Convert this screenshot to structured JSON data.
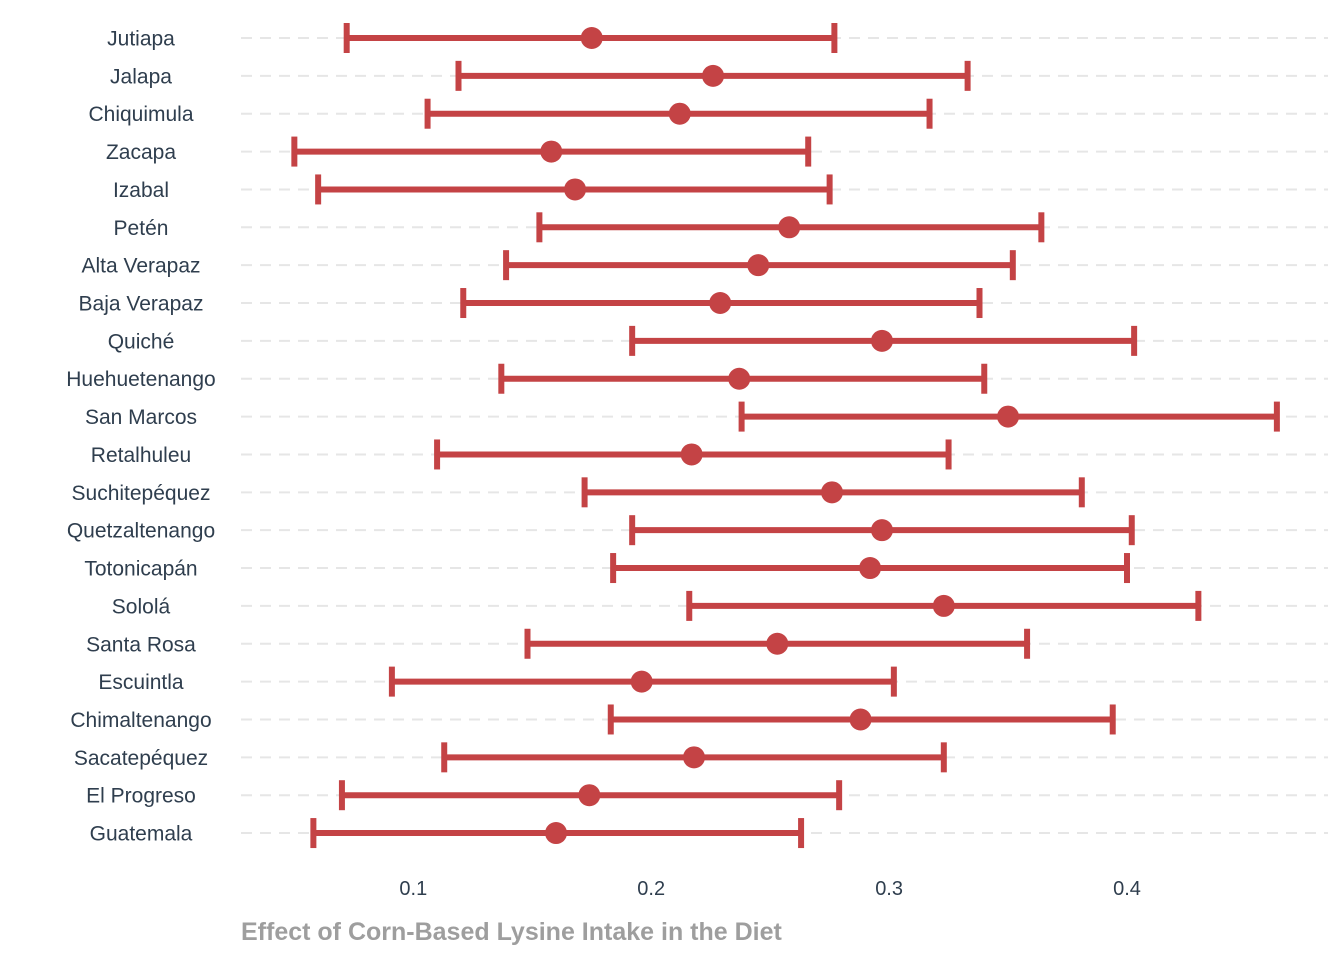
{
  "chart_data": {
    "type": "scatter",
    "subtype": "dot-with-error-bars",
    "xlabel": "Effect of Corn-Based Lysine Intake in the Diet",
    "ylabel": "",
    "xlim": [
      0.03,
      0.47
    ],
    "x_ticks": [
      0.1,
      0.2,
      0.3,
      0.4
    ],
    "x_tick_labels": [
      "0.1",
      "0.2",
      "0.3",
      "0.4"
    ],
    "grid": "horizontal dashed",
    "legend": "none",
    "colors": {
      "point": "#c44345",
      "bar": "#c44345",
      "grid": "#e6e6e6",
      "label": "#2f3e4e",
      "axis_title": "#9e9e9e"
    },
    "categories": [
      "Jutiapa",
      "Jalapa",
      "Chiquimula",
      "Zacapa",
      "Izabal",
      "Petén",
      "Alta Verapaz",
      "Baja Verapaz",
      "Quiché",
      "Huehuetenango",
      "San Marcos",
      "Retalhuleu",
      "Suchitepéquez",
      "Quetzaltenango",
      "Totonicapán",
      "Sololá",
      "Santa Rosa",
      "Escuintla",
      "Chimaltenango",
      "Sacatepéquez",
      "El Progreso",
      "Guatemala"
    ],
    "estimate": [
      0.175,
      0.226,
      0.212,
      0.158,
      0.168,
      0.258,
      0.245,
      0.229,
      0.297,
      0.237,
      0.35,
      0.217,
      0.276,
      0.297,
      0.292,
      0.323,
      0.253,
      0.196,
      0.288,
      0.218,
      0.174,
      0.16
    ],
    "lower": [
      0.072,
      0.119,
      0.106,
      0.05,
      0.06,
      0.153,
      0.139,
      0.121,
      0.192,
      0.137,
      0.238,
      0.11,
      0.172,
      0.192,
      0.184,
      0.216,
      0.148,
      0.091,
      0.183,
      0.113,
      0.07,
      0.058
    ],
    "upper": [
      0.277,
      0.333,
      0.317,
      0.266,
      0.275,
      0.364,
      0.352,
      0.338,
      0.403,
      0.34,
      0.463,
      0.325,
      0.381,
      0.402,
      0.4,
      0.43,
      0.358,
      0.302,
      0.394,
      0.323,
      0.279,
      0.263
    ]
  }
}
